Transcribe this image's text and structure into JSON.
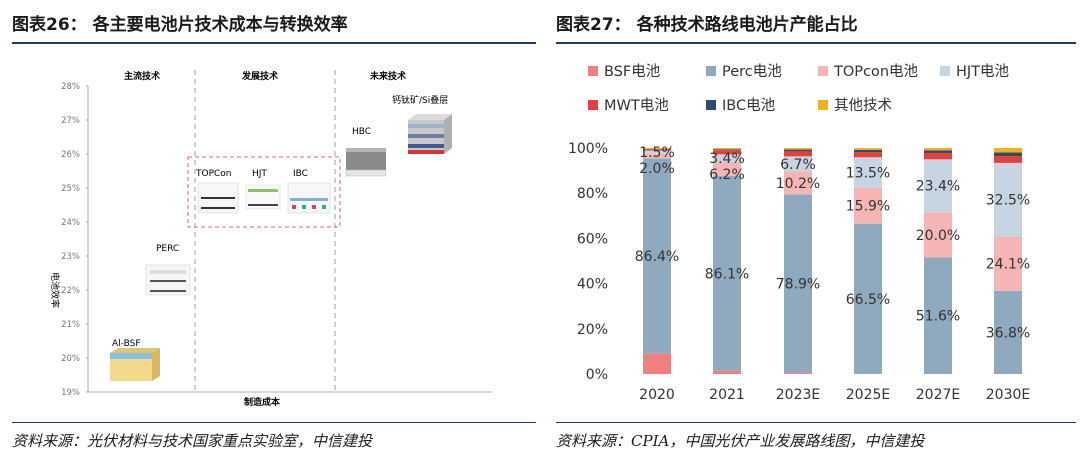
{
  "left_panel": {
    "title": "图表26：  各主要电池片技术成本与转换效率",
    "source": "资料来源：光伏材料与技术国家重点实验室，中信建投",
    "sections": [
      "主流技术",
      "发展技术",
      "未来技术"
    ],
    "y_ticks": [
      "28%",
      "27%",
      "26%",
      "25%",
      "24%",
      "23%",
      "22%",
      "21%",
      "20%",
      "19%"
    ],
    "ylabel": "电池效率",
    "xlabel": "制造成本",
    "tech_labels": [
      "Al-BSF",
      "PERC",
      "TOPCon",
      "HJT",
      "IBC",
      "HBC",
      "钙钛矿/Si叠层"
    ],
    "colors": {
      "axis": "#9a9a9a",
      "divider": "#888888",
      "highlight": "#e06a6a"
    }
  },
  "right_panel": {
    "title": "图表27：  各种技术路线电池片产能占比",
    "source": "资料来源：CPIA，中国光伏产业发展路线图，中信建投",
    "chart_data": {
      "type": "bar",
      "stacked": true,
      "categories": [
        "2020",
        "2021",
        "2023E",
        "2025E",
        "2027E",
        "2030E"
      ],
      "series": [
        {
          "name": "BSF电池",
          "color": "#f08080",
          "values": [
            9.0,
            1.5,
            0.5,
            0.0,
            0.0,
            0.0
          ]
        },
        {
          "name": "Perc电池",
          "color": "#8fa9bf",
          "values": [
            86.4,
            86.1,
            78.9,
            66.5,
            51.6,
            36.8
          ]
        },
        {
          "name": "TOPcon电池",
          "color": "#f5b5b5",
          "values": [
            2.0,
            6.2,
            10.2,
            15.9,
            20.0,
            24.1
          ]
        },
        {
          "name": "HJT电池",
          "color": "#c7d4e1",
          "values": [
            1.5,
            3.4,
            6.7,
            13.5,
            23.4,
            32.5
          ]
        },
        {
          "name": "MWT电池",
          "color": "#e83e3e",
          "values": [
            0.6,
            1.8,
            2.2,
            2.3,
            2.8,
            3.0
          ]
        },
        {
          "name": "IBC电池",
          "color": "#2e4d6b",
          "values": [
            0.1,
            0.4,
            0.8,
            1.0,
            1.2,
            1.6
          ]
        },
        {
          "name": "其他技术",
          "color": "#f2b21c",
          "values": [
            0.4,
            0.6,
            0.7,
            0.8,
            1.0,
            2.0
          ]
        }
      ],
      "data_labels": [
        [
          "1.5%",
          "2.0%",
          "86.4%"
        ],
        [
          "3.4%",
          "6.2%",
          "86.1%"
        ],
        [
          "6.7%",
          "10.2%",
          "78.9%"
        ],
        [
          "13.5%",
          "15.9%",
          "66.5%"
        ],
        [
          "23.4%",
          "20.0%",
          "51.6%"
        ],
        [
          "32.5%",
          "24.1%",
          "36.8%"
        ]
      ],
      "ylim": [
        0,
        100
      ],
      "y_ticks": [
        "0%",
        "20%",
        "40%",
        "60%",
        "80%",
        "100%"
      ],
      "legend_position": "top",
      "grid": false
    }
  }
}
